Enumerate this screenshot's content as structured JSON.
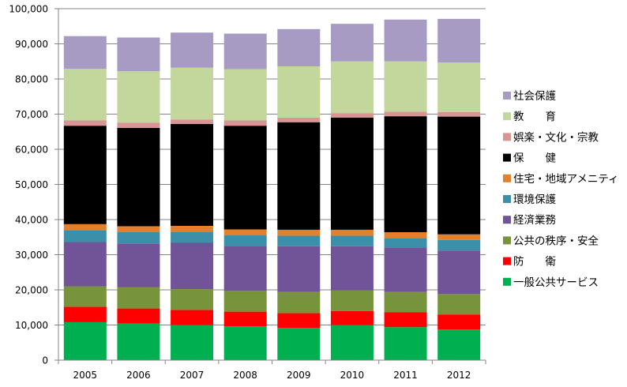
{
  "chart_data": {
    "type": "bar",
    "stacked": true,
    "categories": [
      "2005",
      "2006",
      "2007",
      "2008",
      "2009",
      "2010",
      "2011",
      "2012"
    ],
    "ylim": [
      0,
      100000
    ],
    "yticks": [
      "0",
      "10,000",
      "20,000",
      "30,000",
      "40,000",
      "50,000",
      "60,000",
      "70,000",
      "80,000",
      "90,000",
      "100,000"
    ],
    "grid": true,
    "legend_position": "right",
    "series": [
      {
        "name": "一般公共サービス",
        "color": "#00b050",
        "values": [
          10800,
          10400,
          10000,
          9600,
          9200,
          10000,
          9400,
          8700
        ]
      },
      {
        "name": "防　　衛",
        "color": "#ff0000",
        "values": [
          4400,
          4300,
          4300,
          4200,
          4200,
          4000,
          4200,
          4300
        ]
      },
      {
        "name": "公共の秩序・安全",
        "color": "#77933c",
        "values": [
          5800,
          6000,
          5900,
          5900,
          6000,
          5800,
          5800,
          5800
        ]
      },
      {
        "name": "経済業務",
        "color": "#705497",
        "values": [
          12600,
          12500,
          13300,
          12800,
          13000,
          12600,
          12700,
          12400
        ]
      },
      {
        "name": "環境保護",
        "color": "#3b8fa8",
        "values": [
          3400,
          3200,
          3000,
          3000,
          3000,
          3000,
          2600,
          3000
        ]
      },
      {
        "name": "住宅・地域アメニティ",
        "color": "#e3802b",
        "values": [
          1700,
          1700,
          1700,
          1700,
          1700,
          1700,
          1700,
          1600
        ]
      },
      {
        "name": "保　　健",
        "color": "#000000",
        "values": [
          28000,
          28000,
          29000,
          29500,
          30600,
          31900,
          33000,
          33500
        ]
      },
      {
        "name": "娯楽・文化・宗教",
        "color": "#d99594",
        "values": [
          1500,
          1500,
          1300,
          1500,
          1300,
          1300,
          1300,
          1300
        ]
      },
      {
        "name": "教　　育",
        "color": "#c3d69b",
        "values": [
          14700,
          14600,
          14700,
          14600,
          14600,
          14700,
          14300,
          14100
        ]
      },
      {
        "name": "社会保護",
        "color": "#a79bc3",
        "values": [
          9300,
          9600,
          10000,
          10100,
          10600,
          10700,
          11900,
          12400
        ]
      }
    ]
  }
}
